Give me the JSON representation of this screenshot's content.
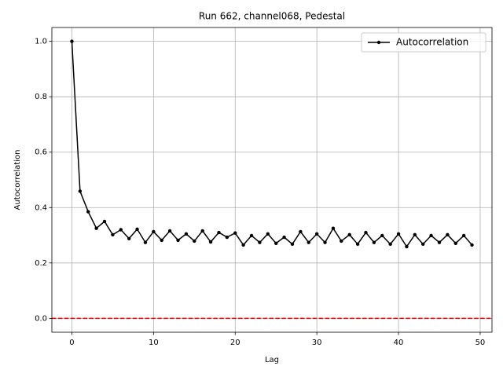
{
  "chart_data": {
    "type": "line",
    "title": "Run 662, channel068, Pedestal",
    "x_label": "Lag",
    "y_label": "Autocorrelation",
    "x": [
      0,
      1,
      2,
      3,
      4,
      5,
      6,
      7,
      8,
      9,
      10,
      11,
      12,
      13,
      14,
      15,
      16,
      17,
      18,
      19,
      20,
      21,
      22,
      23,
      24,
      25,
      26,
      27,
      28,
      29,
      30,
      31,
      32,
      33,
      34,
      35,
      36,
      37,
      38,
      39,
      40,
      41,
      42,
      43,
      44,
      45,
      46,
      47,
      48,
      49
    ],
    "series": [
      {
        "name": "Autocorrelation",
        "color": "#000000",
        "values": [
          1.0,
          0.459,
          0.385,
          0.325,
          0.35,
          0.302,
          0.32,
          0.288,
          0.322,
          0.274,
          0.313,
          0.282,
          0.316,
          0.282,
          0.305,
          0.279,
          0.316,
          0.276,
          0.31,
          0.293,
          0.308,
          0.265,
          0.299,
          0.274,
          0.305,
          0.271,
          0.293,
          0.268,
          0.313,
          0.274,
          0.305,
          0.274,
          0.325,
          0.279,
          0.302,
          0.268,
          0.31,
          0.274,
          0.299,
          0.268,
          0.305,
          0.259,
          0.302,
          0.268,
          0.299,
          0.274,
          0.302,
          0.271,
          0.299,
          0.265
        ]
      }
    ],
    "xlim": [
      -2.45,
      51.45
    ],
    "xticks": [
      0,
      10,
      20,
      30,
      40,
      50
    ],
    "ylim": [
      -0.05,
      1.05
    ],
    "yticks": [
      {
        "value": 0,
        "label": "0.0"
      },
      0.2,
      0.4,
      0.6,
      0.8,
      {
        "value": 1,
        "label": "1.0"
      }
    ],
    "grid": true,
    "legend": "upper right",
    "reference_line": {
      "y": 0,
      "color": "#ff0000",
      "style": "dashed"
    }
  }
}
